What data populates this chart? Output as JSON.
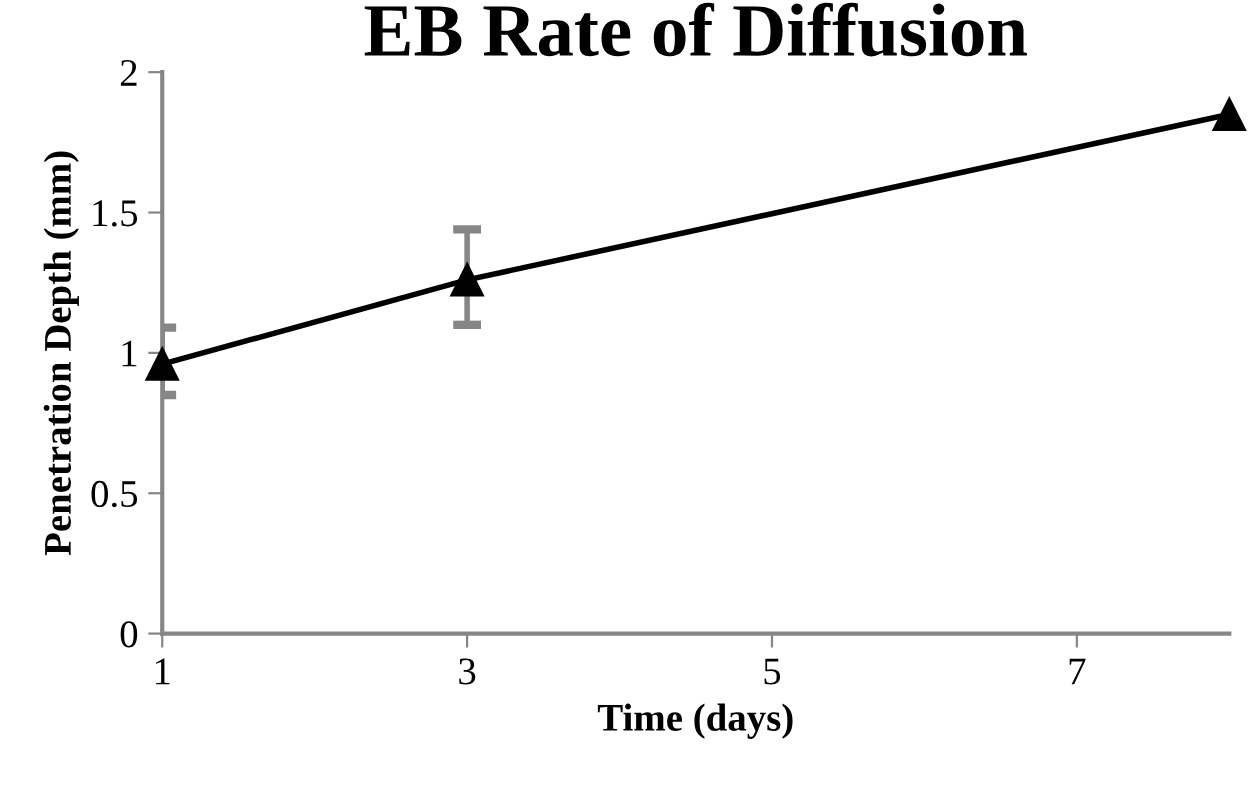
{
  "chart_data": {
    "type": "line",
    "title": "EB Rate of Diffusion",
    "xlabel": "Time (days)",
    "ylabel": "Penetration Depth (mm)",
    "x": [
      1,
      3,
      8
    ],
    "series": [
      {
        "color": "#000000",
        "values": [
          0.96,
          1.26,
          1.85
        ],
        "errors": [
          [
            0.85,
            1.09
          ],
          [
            1.1,
            1.44
          ],
          null
        ]
      }
    ],
    "xlim": [
      1,
      8
    ],
    "xticks": [
      1,
      3,
      5,
      7
    ],
    "ylim": [
      0,
      2
    ],
    "yticks": [
      0,
      0.5,
      1,
      1.5,
      2
    ],
    "grid": false,
    "legend": false,
    "marker": "triangle",
    "line_style": "solid"
  }
}
